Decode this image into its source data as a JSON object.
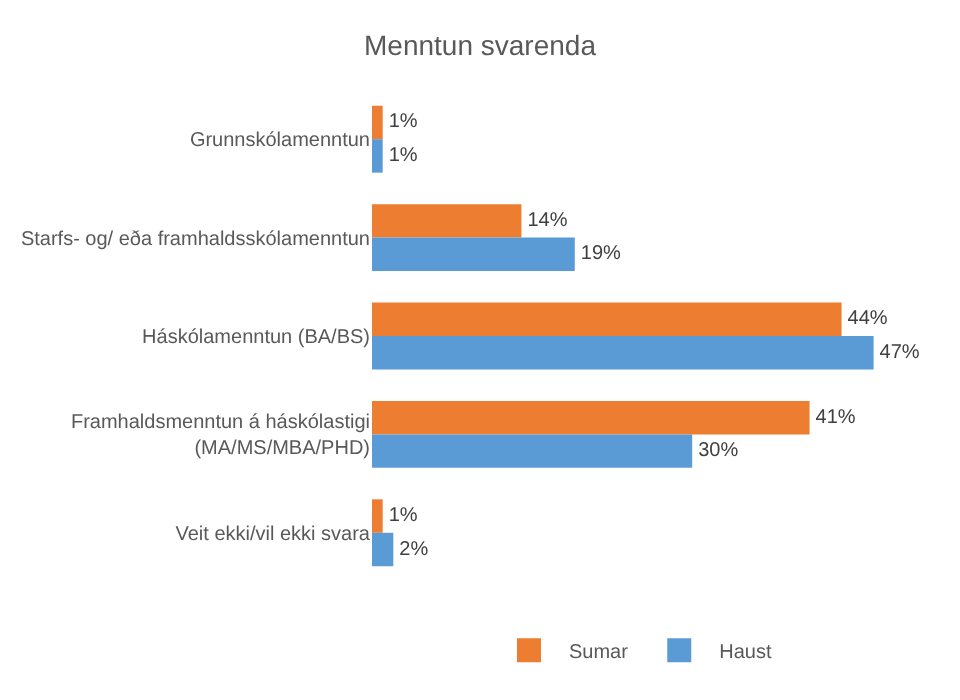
{
  "chart_data": {
    "type": "bar",
    "orientation": "horizontal",
    "title": "Menntun svarenda",
    "categories": [
      "Grunnskólamenntun",
      "Starfs- og/ eða framhaldsskólamenntun",
      "Háskólamenntun (BA/BS)",
      "Framhaldsmenntun á háskólastigi\n(MA/MS/MBA/PHD)",
      "Veit ekki/vil ekki svara"
    ],
    "series": [
      {
        "name": "Sumar",
        "color": "#ed7d31",
        "values": [
          1,
          14,
          44,
          41,
          1
        ],
        "value_labels": [
          "1%",
          "14%",
          "44%",
          "41%",
          "1%"
        ]
      },
      {
        "name": "Haust",
        "color": "#5b9bd5",
        "values": [
          1,
          19,
          47,
          30,
          2
        ],
        "value_labels": [
          "1%",
          "19%",
          "47%",
          "30%",
          "2%"
        ]
      }
    ],
    "grid": false,
    "legend": "bottom",
    "tick_labels": "y"
  }
}
